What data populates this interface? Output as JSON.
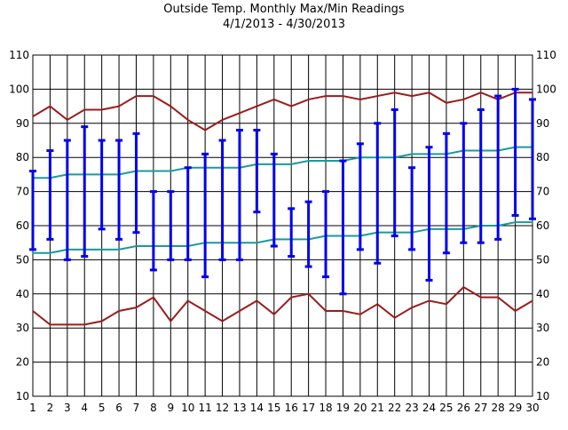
{
  "chart_data": {
    "type": "line",
    "title": "Outside Temp. Monthly Max/Min Readings",
    "subtitle": "4/1/2013 - 4/30/2013",
    "xlabel": "",
    "ylabel": "",
    "x": [
      1,
      2,
      3,
      4,
      5,
      6,
      7,
      8,
      9,
      10,
      11,
      12,
      13,
      14,
      15,
      16,
      17,
      18,
      19,
      20,
      21,
      22,
      23,
      24,
      25,
      26,
      27,
      28,
      29,
      30
    ],
    "ylim": [
      10,
      110
    ],
    "y_ticks": [
      10,
      20,
      30,
      40,
      50,
      60,
      70,
      80,
      90,
      100,
      110
    ],
    "grid": true,
    "series": [
      {
        "type": "line",
        "color": "#9b1c1c",
        "values": [
          92,
          95,
          91,
          94,
          94,
          95,
          98,
          98,
          95,
          91,
          88,
          91,
          93,
          95,
          97,
          95,
          97,
          98,
          98,
          97,
          98,
          99,
          98,
          99,
          96,
          97,
          99,
          97,
          99,
          99
        ]
      },
      {
        "type": "line",
        "color": "#1a9a9a",
        "values": [
          74,
          74,
          75,
          75,
          75,
          75,
          76,
          76,
          76,
          77,
          77,
          77,
          77,
          78,
          78,
          78,
          79,
          79,
          79,
          80,
          80,
          80,
          81,
          81,
          81,
          82,
          82,
          82,
          83,
          83
        ]
      },
      {
        "type": "line",
        "color": "#1a9a9a",
        "values": [
          52,
          52,
          53,
          53,
          53,
          53,
          54,
          54,
          54,
          54,
          55,
          55,
          55,
          55,
          56,
          56,
          56,
          57,
          57,
          57,
          58,
          58,
          58,
          59,
          59,
          59,
          60,
          60,
          61,
          61
        ]
      },
      {
        "type": "line",
        "color": "#9b1c1c",
        "values": [
          35,
          31,
          31,
          31,
          32,
          35,
          36,
          39,
          32,
          38,
          35,
          32,
          35,
          38,
          34,
          39,
          40,
          35,
          35,
          34,
          37,
          33,
          36,
          38,
          37,
          42,
          39,
          39,
          35,
          38
        ]
      },
      {
        "type": "range",
        "color": "#0000ee",
        "high": [
          76,
          82,
          85,
          89,
          85,
          85,
          87,
          70,
          70,
          77,
          81,
          85,
          88,
          88,
          81,
          65,
          67,
          70,
          79,
          84,
          90,
          94,
          77,
          83,
          87,
          90,
          94,
          98,
          100,
          97
        ],
        "low": [
          53,
          56,
          50,
          51,
          59,
          56,
          58,
          47,
          50,
          50,
          45,
          50,
          50,
          64,
          54,
          51,
          48,
          45,
          40,
          53,
          49,
          57,
          53,
          44,
          52,
          55,
          55,
          56,
          63,
          62
        ]
      }
    ]
  }
}
